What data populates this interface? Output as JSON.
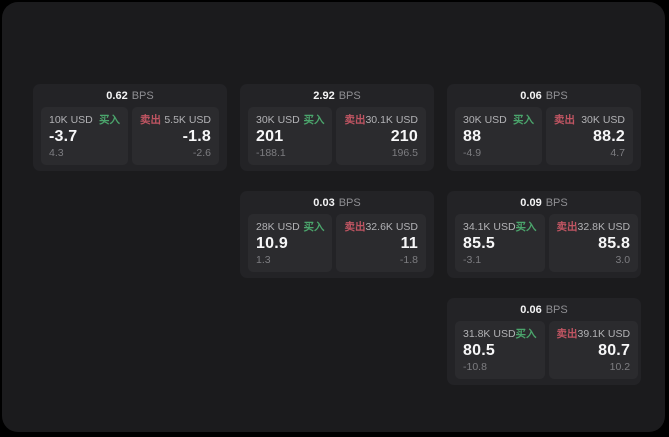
{
  "labels": {
    "bps": "BPS",
    "buy": "买入",
    "sell": "卖出"
  },
  "colors": {
    "window_bg": "#1b1b1d",
    "card_bg": "#232326",
    "panel_bg": "#2b2b2e",
    "buy_green": "#4ba56c",
    "sell_red": "#c05562",
    "value_white": "#f7f7f8",
    "muted_gray": "#7d7d81"
  },
  "cards": [
    {
      "col": 1,
      "row": 1,
      "bps": "0.62",
      "buy": {
        "size": "10K USD",
        "value": "-3.7",
        "sub": "4.3"
      },
      "sell": {
        "size": "5.5K USD",
        "value": "-1.8",
        "sub": "-2.6"
      }
    },
    {
      "col": 2,
      "row": 1,
      "bps": "2.92",
      "buy": {
        "size": "30K USD",
        "value": "201",
        "sub": "-188.1"
      },
      "sell": {
        "size": "30.1K USD",
        "value": "210",
        "sub": "196.5"
      }
    },
    {
      "col": 3,
      "row": 1,
      "bps": "0.06",
      "buy": {
        "size": "30K USD",
        "value": "88",
        "sub": "-4.9"
      },
      "sell": {
        "size": "30K USD",
        "value": "88.2",
        "sub": "4.7"
      }
    },
    {
      "col": 2,
      "row": 2,
      "bps": "0.03",
      "buy": {
        "size": "28K USD",
        "value": "10.9",
        "sub": "1.3"
      },
      "sell": {
        "size": "32.6K USD",
        "value": "11",
        "sub": "-1.8"
      }
    },
    {
      "col": 3,
      "row": 2,
      "bps": "0.09",
      "buy": {
        "size": "34.1K USD",
        "value": "85.5",
        "sub": "-3.1"
      },
      "sell": {
        "size": "32.8K USD",
        "value": "85.8",
        "sub": "3.0"
      }
    },
    {
      "col": 3,
      "row": 3,
      "bps": "0.06",
      "buy": {
        "size": "31.8K USD",
        "value": "80.5",
        "sub": "-10.8"
      },
      "sell": {
        "size": "39.1K USD",
        "value": "80.7",
        "sub": "10.2"
      }
    }
  ]
}
